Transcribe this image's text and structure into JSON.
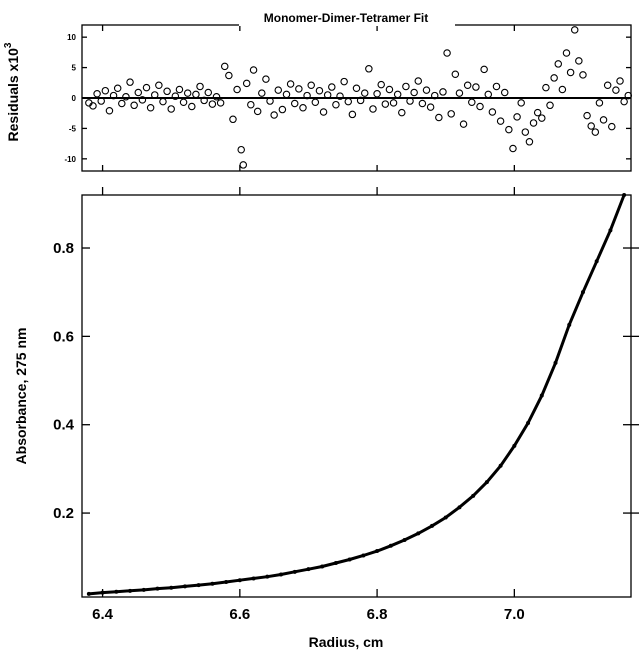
{
  "chart_data": [
    {
      "type": "scatter",
      "title": "Monomer-Dimer-Tetramer Fit",
      "ylabel": "Residuals",
      "ylabel_multiplier": "x10",
      "ylabel_exponent": "3",
      "xlim": [
        6.37,
        7.17
      ],
      "ylim": [
        -12,
        12
      ],
      "y_ticks": [
        10,
        5,
        0,
        -5,
        -10
      ],
      "y_tick_labels": [
        "10",
        "5",
        "0",
        "-5",
        "-10"
      ],
      "zero_line": true,
      "marker": "open-circle",
      "grid": false,
      "series": [
        {
          "values": [
            [
              6.38,
              -0.8
            ],
            [
              6.386,
              -1.3
            ],
            [
              6.392,
              0.7
            ],
            [
              6.398,
              -0.5
            ],
            [
              6.404,
              1.2
            ],
            [
              6.41,
              -2.1
            ],
            [
              6.416,
              0.4
            ],
            [
              6.422,
              1.6
            ],
            [
              6.428,
              -0.9
            ],
            [
              6.434,
              0.2
            ],
            [
              6.44,
              2.6
            ],
            [
              6.446,
              -1.2
            ],
            [
              6.452,
              0.9
            ],
            [
              6.458,
              -0.3
            ],
            [
              6.464,
              1.7
            ],
            [
              6.47,
              -1.6
            ],
            [
              6.476,
              0.5
            ],
            [
              6.482,
              2.1
            ],
            [
              6.488,
              -0.6
            ],
            [
              6.494,
              1.1
            ],
            [
              6.5,
              -1.8
            ],
            [
              6.506,
              0.3
            ],
            [
              6.512,
              1.4
            ],
            [
              6.518,
              -0.7
            ],
            [
              6.524,
              0.8
            ],
            [
              6.53,
              -1.4
            ],
            [
              6.536,
              0.6
            ],
            [
              6.542,
              1.9
            ],
            [
              6.548,
              -0.4
            ],
            [
              6.554,
              0.9
            ],
            [
              6.56,
              -1.0
            ],
            [
              6.566,
              0.2
            ],
            [
              6.572,
              -0.8
            ],
            [
              6.578,
              5.2
            ],
            [
              6.584,
              3.7
            ],
            [
              6.59,
              -3.5
            ],
            [
              6.596,
              1.4
            ],
            [
              6.602,
              -8.5
            ],
            [
              6.605,
              -11.0
            ],
            [
              6.61,
              2.4
            ],
            [
              6.616,
              -1.1
            ],
            [
              6.62,
              4.6
            ],
            [
              6.626,
              -2.2
            ],
            [
              6.632,
              0.8
            ],
            [
              6.638,
              3.1
            ],
            [
              6.644,
              -0.5
            ],
            [
              6.65,
              -2.8
            ],
            [
              6.656,
              1.3
            ],
            [
              6.662,
              -1.9
            ],
            [
              6.668,
              0.6
            ],
            [
              6.674,
              2.3
            ],
            [
              6.68,
              -0.9
            ],
            [
              6.686,
              1.5
            ],
            [
              6.692,
              -1.6
            ],
            [
              6.698,
              0.4
            ],
            [
              6.704,
              2.1
            ],
            [
              6.71,
              -0.7
            ],
            [
              6.716,
              1.2
            ],
            [
              6.722,
              -2.3
            ],
            [
              6.728,
              0.5
            ],
            [
              6.734,
              1.8
            ],
            [
              6.74,
              -1.1
            ],
            [
              6.746,
              0.3
            ],
            [
              6.752,
              2.7
            ],
            [
              6.758,
              -0.6
            ],
            [
              6.764,
              -2.7
            ],
            [
              6.77,
              1.6
            ],
            [
              6.776,
              -0.4
            ],
            [
              6.782,
              0.8
            ],
            [
              6.788,
              4.8
            ],
            [
              6.794,
              -1.8
            ],
            [
              6.8,
              0.7
            ],
            [
              6.806,
              2.2
            ],
            [
              6.812,
              -1.0
            ],
            [
              6.818,
              1.4
            ],
            [
              6.824,
              -0.8
            ],
            [
              6.83,
              0.6
            ],
            [
              6.836,
              -2.4
            ],
            [
              6.842,
              1.9
            ],
            [
              6.848,
              -0.5
            ],
            [
              6.854,
              0.9
            ],
            [
              6.86,
              2.8
            ],
            [
              6.866,
              -0.9
            ],
            [
              6.872,
              1.3
            ],
            [
              6.878,
              -1.5
            ],
            [
              6.884,
              0.4
            ],
            [
              6.89,
              -3.2
            ],
            [
              6.896,
              1.0
            ],
            [
              6.902,
              7.4
            ],
            [
              6.908,
              -2.6
            ],
            [
              6.914,
              3.9
            ],
            [
              6.92,
              0.8
            ],
            [
              6.926,
              -4.3
            ],
            [
              6.932,
              2.1
            ],
            [
              6.938,
              -0.7
            ],
            [
              6.944,
              1.8
            ],
            [
              6.95,
              -1.4
            ],
            [
              6.956,
              4.7
            ],
            [
              6.962,
              0.6
            ],
            [
              6.968,
              -2.3
            ],
            [
              6.974,
              1.9
            ],
            [
              6.98,
              -3.8
            ],
            [
              6.986,
              0.9
            ],
            [
              6.992,
              -5.2
            ],
            [
              6.998,
              -8.3
            ],
            [
              7.004,
              -3.1
            ],
            [
              7.01,
              -0.8
            ],
            [
              7.016,
              -5.6
            ],
            [
              7.022,
              -7.2
            ],
            [
              7.028,
              -4.1
            ],
            [
              7.034,
              -2.4
            ],
            [
              7.04,
              -3.3
            ],
            [
              7.046,
              1.7
            ],
            [
              7.052,
              -1.2
            ],
            [
              7.058,
              3.3
            ],
            [
              7.064,
              5.6
            ],
            [
              7.07,
              1.4
            ],
            [
              7.076,
              7.4
            ],
            [
              7.082,
              4.2
            ],
            [
              7.088,
              11.2
            ],
            [
              7.094,
              6.1
            ],
            [
              7.1,
              3.8
            ],
            [
              7.106,
              -2.9
            ],
            [
              7.112,
              -4.6
            ],
            [
              7.118,
              -5.6
            ],
            [
              7.124,
              -0.8
            ],
            [
              7.13,
              -3.6
            ],
            [
              7.136,
              2.1
            ],
            [
              7.142,
              -4.7
            ],
            [
              7.148,
              1.3
            ],
            [
              7.154,
              2.8
            ],
            [
              7.16,
              -0.6
            ],
            [
              7.166,
              0.4
            ]
          ]
        }
      ]
    },
    {
      "type": "scatter",
      "xlabel": "Radius, cm",
      "ylabel": "Absorbance, 275 nm",
      "xlim": [
        6.37,
        7.17
      ],
      "ylim": [
        0.01,
        0.92
      ],
      "x_ticks": [
        6.4,
        6.6,
        6.8,
        7.0
      ],
      "x_tick_labels": [
        "6.4",
        "6.6",
        "6.8",
        "7.0"
      ],
      "y_ticks": [
        0.2,
        0.4,
        0.6,
        0.8
      ],
      "y_tick_labels": [
        "0.2",
        "0.4",
        "0.6",
        "0.8"
      ],
      "marker": "filled-dot",
      "grid": false,
      "series": [
        {
          "values": [
            [
              6.38,
              0.017
            ],
            [
              6.4,
              0.02
            ],
            [
              6.42,
              0.022
            ],
            [
              6.44,
              0.024
            ],
            [
              6.46,
              0.026
            ],
            [
              6.48,
              0.029
            ],
            [
              6.5,
              0.031
            ],
            [
              6.52,
              0.034
            ],
            [
              6.54,
              0.037
            ],
            [
              6.56,
              0.04
            ],
            [
              6.58,
              0.044
            ],
            [
              6.6,
              0.048
            ],
            [
              6.62,
              0.052
            ],
            [
              6.64,
              0.056
            ],
            [
              6.66,
              0.061
            ],
            [
              6.68,
              0.067
            ],
            [
              6.7,
              0.073
            ],
            [
              6.72,
              0.079
            ],
            [
              6.74,
              0.087
            ],
            [
              6.76,
              0.095
            ],
            [
              6.78,
              0.104
            ],
            [
              6.8,
              0.114
            ],
            [
              6.82,
              0.126
            ],
            [
              6.84,
              0.139
            ],
            [
              6.86,
              0.154
            ],
            [
              6.88,
              0.171
            ],
            [
              6.9,
              0.19
            ],
            [
              6.92,
              0.213
            ],
            [
              6.94,
              0.239
            ],
            [
              6.96,
              0.27
            ],
            [
              6.98,
              0.307
            ],
            [
              7.0,
              0.352
            ],
            [
              7.02,
              0.404
            ],
            [
              7.04,
              0.466
            ],
            [
              7.06,
              0.54
            ],
            [
              7.08,
              0.626
            ],
            [
              7.1,
              0.7
            ],
            [
              7.12,
              0.77
            ],
            [
              7.14,
              0.84
            ],
            [
              7.16,
              0.92
            ]
          ]
        }
      ]
    }
  ]
}
